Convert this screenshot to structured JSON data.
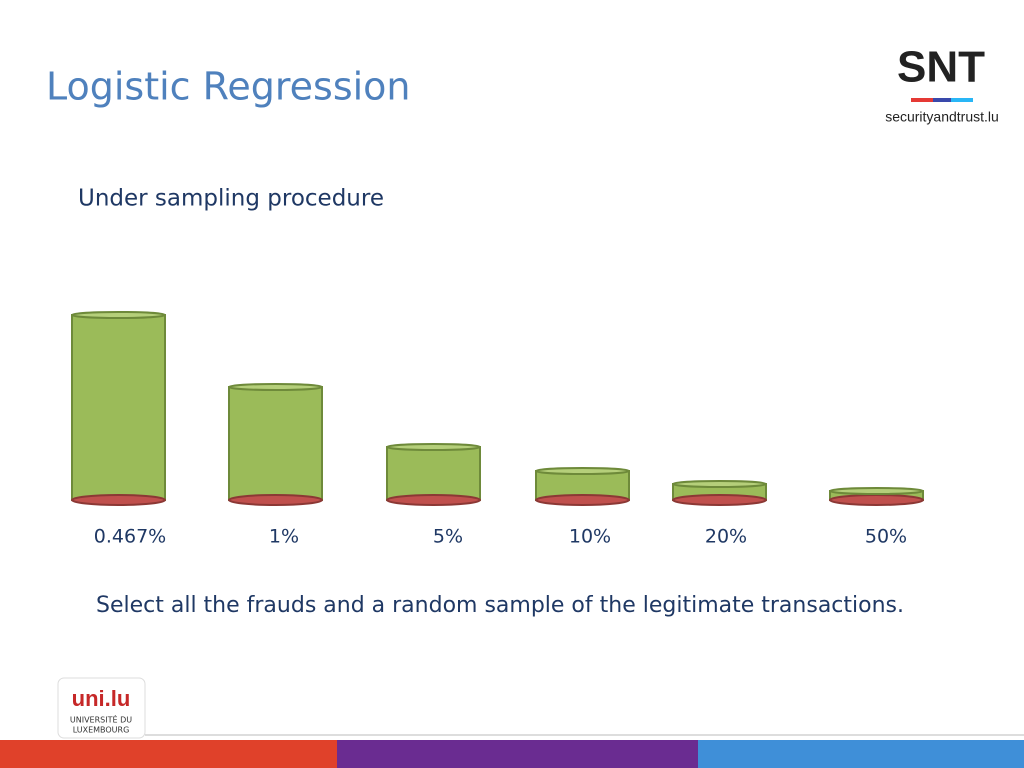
{
  "header": {
    "title": "Logistic Regression"
  },
  "logo": {
    "mark": "SNT",
    "site": "securityandtrust.lu"
  },
  "subtitle": "Under sampling procedure",
  "labels": [
    "0.467%",
    "1%",
    "5%",
    "10%",
    "20%",
    "50%"
  ],
  "caption": "Select all the frauds and a random sample of the legitimate transactions.",
  "footer_logo": {
    "mark": "uni.lu",
    "line1": "UNIVERSITÉ DU",
    "line2": "LUXEMBOURG"
  }
}
